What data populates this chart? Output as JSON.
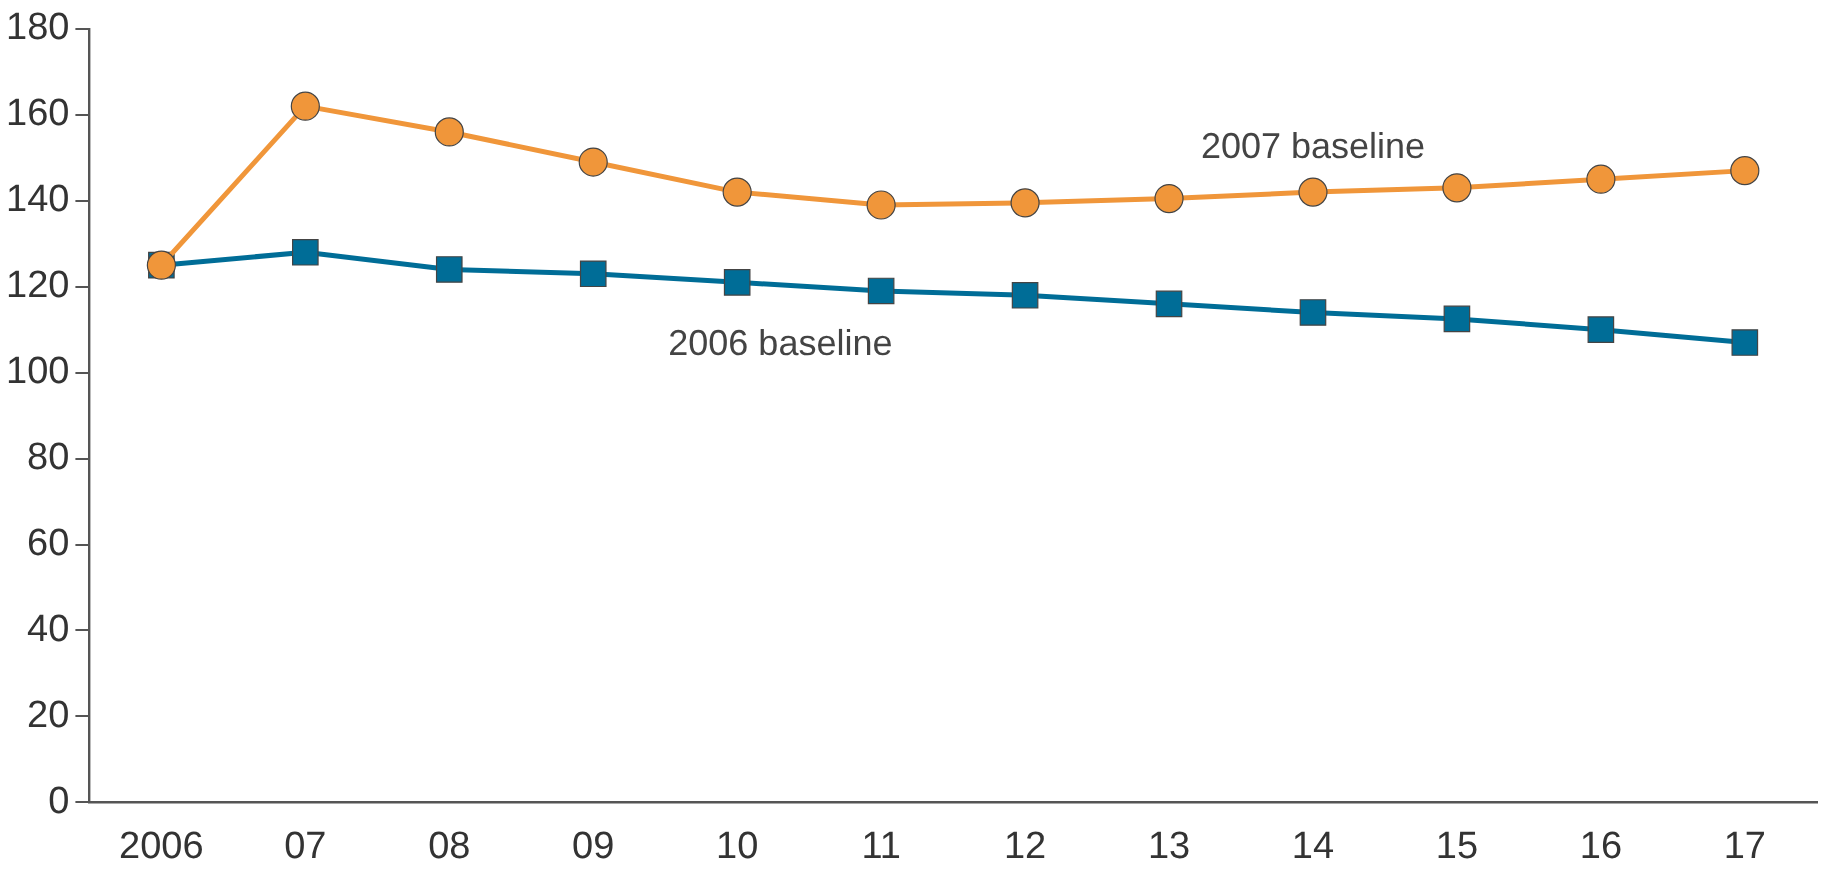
{
  "chart_data": {
    "type": "line",
    "categories": [
      "2006",
      "07",
      "08",
      "09",
      "10",
      "11",
      "12",
      "13",
      "14",
      "15",
      "16",
      "17"
    ],
    "series": [
      {
        "name": "2006 baseline",
        "color": "#006d97",
        "marker": "square",
        "values": [
          125,
          128,
          124,
          123,
          121,
          119,
          118,
          116,
          114,
          112.5,
          110,
          107
        ]
      },
      {
        "name": "2007 baseline",
        "color": "#f0963a",
        "marker": "circle",
        "values": [
          125,
          162,
          156,
          149,
          142,
          139,
          139.5,
          140.5,
          142,
          143,
          145,
          147
        ]
      }
    ],
    "ylim": [
      0,
      180
    ],
    "yticks": [
      0,
      20,
      40,
      60,
      80,
      100,
      120,
      140,
      160,
      180
    ],
    "grid": false,
    "legend": false
  }
}
